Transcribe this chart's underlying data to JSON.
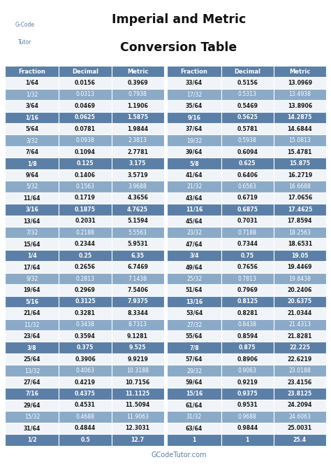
{
  "title_line1": "Imperial and Metric",
  "title_line2": "Conversion Table",
  "footer": "GCodeTutor.com",
  "col_headers": [
    "Fraction",
    "Decimal",
    "Metric"
  ],
  "left_table": [
    [
      "1/64",
      "0.0156",
      "0.3969"
    ],
    [
      "1/32",
      "0.0313",
      "0.7938"
    ],
    [
      "3/64",
      "0.0469",
      "1.1906"
    ],
    [
      "1/16",
      "0.0625",
      "1.5875"
    ],
    [
      "5/64",
      "0.0781",
      "1.9844"
    ],
    [
      "3/32",
      "0.0938",
      "2.3813"
    ],
    [
      "7/64",
      "0.1094",
      "2.7781"
    ],
    [
      "1/8",
      "0.125",
      "3.175"
    ],
    [
      "9/64",
      "0.1406",
      "3.5719"
    ],
    [
      "5/32",
      "0.1563",
      "3.9688"
    ],
    [
      "11/64",
      "0.1719",
      "4.3656"
    ],
    [
      "3/16",
      "0.1875",
      "4.7625"
    ],
    [
      "13/64",
      "0.2031",
      "5.1594"
    ],
    [
      "7/32",
      "0.2188",
      "5.5563"
    ],
    [
      "15/64",
      "0.2344",
      "5.9531"
    ],
    [
      "1/4",
      "0.25",
      "6.35"
    ],
    [
      "17/64",
      "0.2656",
      "6.7469"
    ],
    [
      "9/32",
      "0.2813",
      "7.1438"
    ],
    [
      "19/64",
      "0.2969",
      "7.5406"
    ],
    [
      "5/16",
      "0.3125",
      "7.9375"
    ],
    [
      "21/64",
      "0.3281",
      "8.3344"
    ],
    [
      "11/32",
      "0.3438",
      "8.7313"
    ],
    [
      "23/64",
      "0.3594",
      "9.1281"
    ],
    [
      "3/8",
      "0.375",
      "9.525"
    ],
    [
      "25/64",
      "0.3906",
      "9.9219"
    ],
    [
      "13/32",
      "0.4063",
      "10.3188"
    ],
    [
      "27/64",
      "0.4219",
      "10.7156"
    ],
    [
      "7/16",
      "0.4375",
      "11.1125"
    ],
    [
      "29/64",
      "0.4531",
      "11.5094"
    ],
    [
      "15/32",
      "0.4688",
      "11.9063"
    ],
    [
      "31/64",
      "0.4844",
      "12.3031"
    ],
    [
      "1/2",
      "0.5",
      "12.7"
    ]
  ],
  "right_table": [
    [
      "33/64",
      "0.5156",
      "13.0969"
    ],
    [
      "17/32",
      "0.5313",
      "13.4938"
    ],
    [
      "35/64",
      "0.5469",
      "13.8906"
    ],
    [
      "9/16",
      "0.5625",
      "14.2875"
    ],
    [
      "37/64",
      "0.5781",
      "14.6844"
    ],
    [
      "19/32",
      "0.5938",
      "15.0813"
    ],
    [
      "39/64",
      "0.6094",
      "15.4781"
    ],
    [
      "5/8",
      "0.625",
      "15.875"
    ],
    [
      "41/64",
      "0.6406",
      "16.2719"
    ],
    [
      "21/32",
      "0.6563",
      "16.6688"
    ],
    [
      "43/64",
      "0.6719",
      "17.0656"
    ],
    [
      "11/16",
      "0.6875",
      "17.4625"
    ],
    [
      "45/64",
      "0.7031",
      "17.8594"
    ],
    [
      "23/32",
      "0.7188",
      "18.2563"
    ],
    [
      "47/64",
      "0.7344",
      "18.6531"
    ],
    [
      "3/4",
      "0.75",
      "19.05"
    ],
    [
      "49/64",
      "0.7656",
      "19.4469"
    ],
    [
      "25/32",
      "0.7813",
      "19.8438"
    ],
    [
      "51/64",
      "0.7969",
      "20.2406"
    ],
    [
      "13/16",
      "0.8125",
      "20.6375"
    ],
    [
      "53/64",
      "0.8281",
      "21.0344"
    ],
    [
      "27/32",
      "0.8438",
      "21.4313"
    ],
    [
      "55/64",
      "0.8594",
      "21.8281"
    ],
    [
      "7/8",
      "0.875",
      "22.225"
    ],
    [
      "57/64",
      "0.8906",
      "22.6219"
    ],
    [
      "29/32",
      "0.9063",
      "23.0188"
    ],
    [
      "59/64",
      "0.9219",
      "23.4156"
    ],
    [
      "15/16",
      "0.9375",
      "23.8125"
    ],
    [
      "61/64",
      "0.9531",
      "24.2094"
    ],
    [
      "31/32",
      "0.9688",
      "24.6063"
    ],
    [
      "63/64",
      "0.9844",
      "25.0031"
    ],
    [
      "1",
      "1",
      "25.4"
    ]
  ],
  "header_bg": "#5b7fa6",
  "header_fg": "#ffffff",
  "row_white_bg": "#f0f4f8",
  "row_white_fg": "#1a1a1a",
  "row_mid_bg": "#8baac8",
  "row_mid_fg": "#ffffff",
  "row_dark_bg": "#5b7fa6",
  "row_dark_fg": "#ffffff",
  "bg_color": "#ffffff",
  "title_color": "#111111",
  "footer_color": "#5b7fa6",
  "logo_color": "#5b7fa6"
}
